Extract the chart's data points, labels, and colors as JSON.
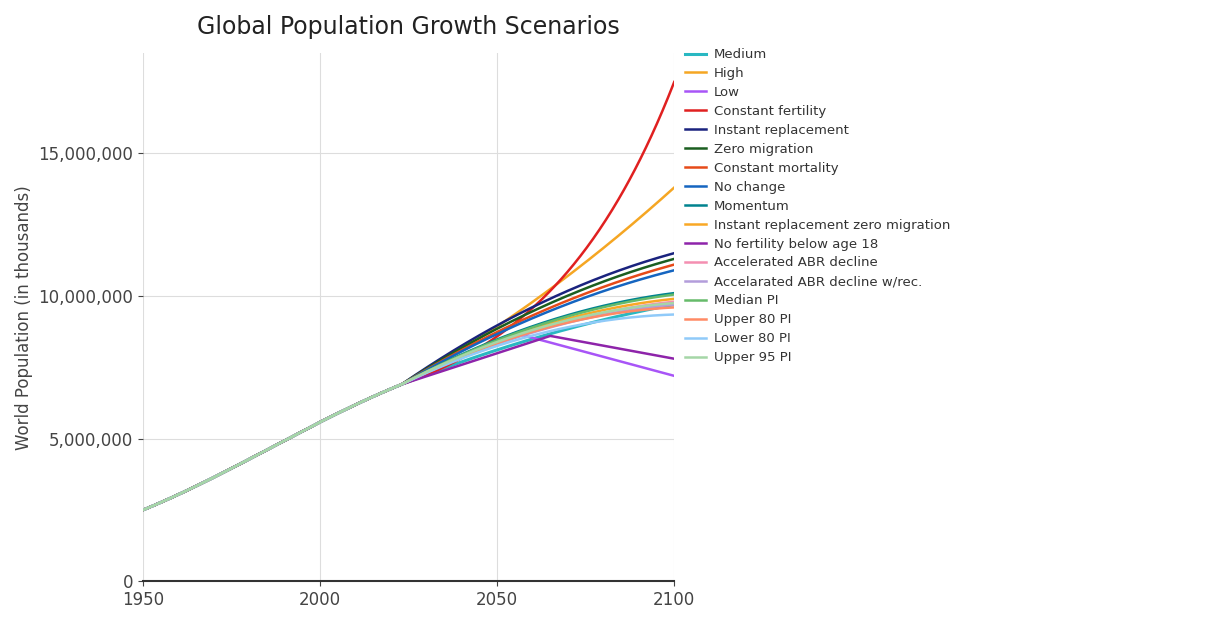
{
  "title": "Global Population Growth Scenarios",
  "ylabel": "World Population (in thousands)",
  "background_color": "#ffffff",
  "title_fontsize": 17,
  "ylabel_fontsize": 12,
  "ylim": [
    0,
    18500000
  ],
  "yticks": [
    0,
    5000000,
    10000000,
    15000000
  ],
  "xticks": [
    1950,
    2000,
    2050,
    2100
  ],
  "series": [
    {
      "label": "Medium",
      "color": "#29b8c2",
      "linewidth": 2.2,
      "type": "medium"
    },
    {
      "label": "High",
      "color": "#f5a623",
      "linewidth": 1.8,
      "type": "high"
    },
    {
      "label": "Low",
      "color": "#a855f7",
      "linewidth": 1.8,
      "type": "low"
    },
    {
      "label": "Constant fertility",
      "color": "#e02020",
      "linewidth": 1.8,
      "type": "const_fert"
    },
    {
      "label": "Instant replacement",
      "color": "#1a237e",
      "linewidth": 1.8,
      "type": "instant_rep"
    },
    {
      "label": "Zero migration",
      "color": "#1b5e20",
      "linewidth": 1.8,
      "type": "zero_mig"
    },
    {
      "label": "Constant mortality",
      "color": "#e64a19",
      "linewidth": 1.8,
      "type": "const_mort"
    },
    {
      "label": "No change",
      "color": "#1565c0",
      "linewidth": 1.8,
      "type": "no_change"
    },
    {
      "label": "Momentum",
      "color": "#00838f",
      "linewidth": 1.8,
      "type": "momentum"
    },
    {
      "label": "Instant replacement zero migration",
      "color": "#f9a825",
      "linewidth": 1.8,
      "type": "inst_rep_zm"
    },
    {
      "label": "No fertility below age 18",
      "color": "#8e24aa",
      "linewidth": 1.8,
      "type": "no_fert_18"
    },
    {
      "label": "Accelerated ABR decline",
      "color": "#f48fb1",
      "linewidth": 1.8,
      "type": "accel_abr"
    },
    {
      "label": "Accelarated ABR decline w/rec.",
      "color": "#b39ddb",
      "linewidth": 1.8,
      "type": "accel_abr_rec"
    },
    {
      "label": "Median PI",
      "color": "#66bb6a",
      "linewidth": 1.8,
      "type": "median_pi"
    },
    {
      "label": "Upper 80 PI",
      "color": "#ff8a65",
      "linewidth": 1.8,
      "type": "upper_80"
    },
    {
      "label": "Lower 80 PI",
      "color": "#90caf9",
      "linewidth": 1.8,
      "type": "lower_80"
    },
    {
      "label": "Upper 95 PI",
      "color": "#a5d6a7",
      "linewidth": 1.8,
      "type": "upper_95"
    }
  ]
}
